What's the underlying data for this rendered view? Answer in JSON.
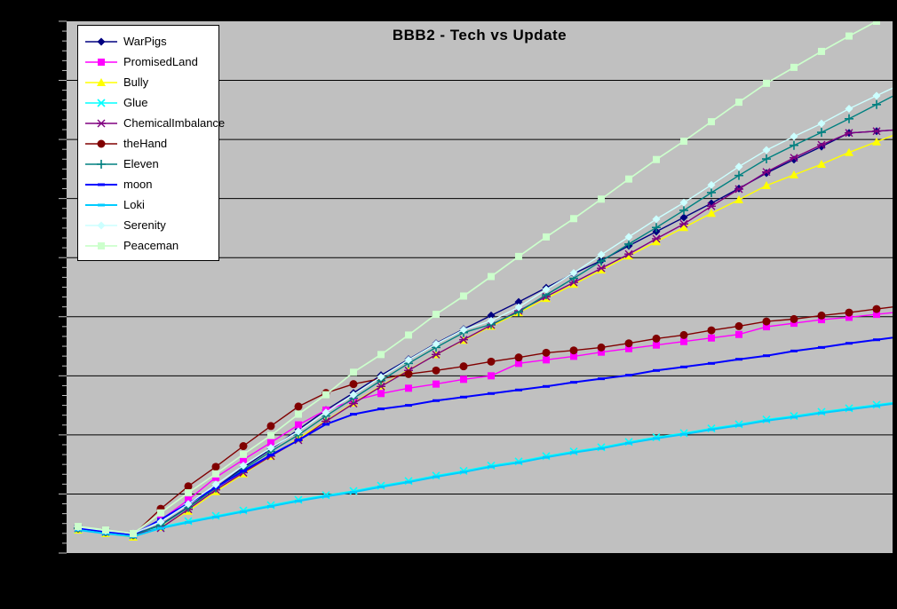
{
  "window": {
    "background": "#000000"
  },
  "title": {
    "text": "BBB2 - Tech vs Update",
    "color": "#000000"
  },
  "plot": {
    "fill": "#C0C0C0",
    "grid_color": "#000000",
    "tick_color": "#C0C0C0",
    "legend_bg": "#FFFFFF",
    "legend_border": "#000000"
  },
  "chart_data": {
    "type": "line",
    "title": "BBB2 - Tech vs Update",
    "x_axis": {
      "labels_visible": false,
      "points": 30
    },
    "y_axis": {
      "labels_visible": false,
      "gridline_intervals": 9,
      "range_grid_units": [
        0,
        9
      ]
    },
    "legend_position": "top-left-overlay",
    "grid": "horizontal-only",
    "series": [
      {
        "name": "WarPigs",
        "color": "#000080",
        "marker": "diamond",
        "width": 1.4,
        "values": [
          0.42,
          0.36,
          0.31,
          0.48,
          0.78,
          1.11,
          1.45,
          1.76,
          2.09,
          2.42,
          2.71,
          3.01,
          3.28,
          3.55,
          3.79,
          4.02,
          4.25,
          4.49,
          4.73,
          4.95,
          5.2,
          5.44,
          5.68,
          5.92,
          6.17,
          6.43,
          6.66,
          6.88,
          7.11,
          7.14
        ]
      },
      {
        "name": "PromisedLand",
        "color": "#FF00FF",
        "marker": "square",
        "width": 1.4,
        "values": [
          0.42,
          0.36,
          0.31,
          0.56,
          0.9,
          1.28,
          1.58,
          1.87,
          2.17,
          2.42,
          2.58,
          2.7,
          2.79,
          2.86,
          2.94,
          3.0,
          3.21,
          3.27,
          3.33,
          3.4,
          3.46,
          3.52,
          3.58,
          3.64,
          3.7,
          3.83,
          3.89,
          3.95,
          3.99,
          4.04
        ]
      },
      {
        "name": "Bully",
        "color": "#FFFF00",
        "marker": "triangle",
        "width": 1.4,
        "values": [
          0.39,
          0.33,
          0.27,
          0.44,
          0.71,
          1.04,
          1.34,
          1.64,
          1.94,
          2.24,
          2.54,
          2.83,
          3.1,
          3.36,
          3.6,
          3.84,
          4.07,
          4.31,
          4.55,
          4.79,
          5.03,
          5.27,
          5.51,
          5.75,
          5.98,
          6.22,
          6.4,
          6.58,
          6.78,
          6.96
        ]
      },
      {
        "name": "Glue",
        "color": "#00FFFF",
        "marker": "x",
        "width": 1.4,
        "values": [
          0.41,
          0.35,
          0.3,
          0.44,
          0.54,
          0.63,
          0.72,
          0.81,
          0.9,
          0.98,
          1.05,
          1.14,
          1.22,
          1.31,
          1.39,
          1.48,
          1.55,
          1.64,
          1.72,
          1.79,
          1.88,
          1.96,
          2.03,
          2.11,
          2.18,
          2.26,
          2.32,
          2.39,
          2.45,
          2.51
        ]
      },
      {
        "name": "ChemicalImbalance",
        "color": "#800080",
        "marker": "star",
        "width": 1.4,
        "values": [
          0.42,
          0.36,
          0.31,
          0.42,
          0.74,
          1.07,
          1.36,
          1.64,
          1.91,
          2.23,
          2.53,
          2.82,
          3.09,
          3.36,
          3.61,
          3.86,
          4.1,
          4.34,
          4.58,
          4.82,
          5.06,
          5.32,
          5.57,
          5.87,
          6.16,
          6.45,
          6.69,
          6.91,
          7.11,
          7.14
        ]
      },
      {
        "name": "theHand",
        "color": "#800000",
        "marker": "circle",
        "width": 1.4,
        "values": [
          0.42,
          0.36,
          0.31,
          0.75,
          1.13,
          1.46,
          1.81,
          2.15,
          2.48,
          2.71,
          2.86,
          2.95,
          3.03,
          3.09,
          3.16,
          3.24,
          3.31,
          3.39,
          3.43,
          3.48,
          3.55,
          3.63,
          3.69,
          3.77,
          3.84,
          3.92,
          3.96,
          4.02,
          4.07,
          4.13
        ]
      },
      {
        "name": "Eleven",
        "color": "#008080",
        "marker": "plus",
        "width": 1.4,
        "values": [
          0.42,
          0.36,
          0.31,
          0.47,
          0.77,
          1.1,
          1.42,
          1.72,
          2.0,
          2.32,
          2.62,
          2.92,
          3.21,
          3.48,
          3.73,
          3.87,
          4.08,
          4.37,
          4.65,
          4.94,
          5.23,
          5.51,
          5.8,
          6.1,
          6.39,
          6.67,
          6.9,
          7.12,
          7.35,
          7.59
        ]
      },
      {
        "name": "moon",
        "color": "#0000FF",
        "marker": "dash",
        "width": 2,
        "values": [
          0.42,
          0.36,
          0.31,
          0.57,
          0.84,
          1.11,
          1.39,
          1.66,
          1.91,
          2.18,
          2.35,
          2.44,
          2.5,
          2.58,
          2.64,
          2.7,
          2.76,
          2.82,
          2.89,
          2.95,
          3.01,
          3.09,
          3.15,
          3.21,
          3.28,
          3.34,
          3.42,
          3.48,
          3.55,
          3.61
        ]
      },
      {
        "name": "Loki",
        "color": "#00CCFF",
        "marker": "dash",
        "width": 2,
        "values": [
          0.39,
          0.33,
          0.28,
          0.42,
          0.52,
          0.61,
          0.7,
          0.79,
          0.88,
          0.96,
          1.03,
          1.12,
          1.2,
          1.29,
          1.37,
          1.46,
          1.53,
          1.62,
          1.7,
          1.77,
          1.86,
          1.94,
          2.01,
          2.09,
          2.16,
          2.24,
          2.3,
          2.37,
          2.43,
          2.49
        ]
      },
      {
        "name": "Serenity",
        "color": "#CCFFFF",
        "marker": "diamond",
        "width": 1.4,
        "values": [
          0.44,
          0.38,
          0.33,
          0.53,
          0.83,
          1.16,
          1.48,
          1.78,
          2.06,
          2.38,
          2.68,
          2.98,
          3.27,
          3.54,
          3.78,
          3.93,
          4.16,
          4.46,
          4.74,
          5.05,
          5.35,
          5.65,
          5.93,
          6.23,
          6.54,
          6.82,
          7.05,
          7.27,
          7.52,
          7.74
        ]
      },
      {
        "name": "Peaceman",
        "color": "#CCFFCC",
        "marker": "square",
        "width": 1.7,
        "values": [
          0.45,
          0.39,
          0.33,
          0.68,
          1.02,
          1.34,
          1.67,
          1.99,
          2.35,
          2.68,
          3.06,
          3.36,
          3.69,
          4.04,
          4.35,
          4.68,
          5.02,
          5.35,
          5.66,
          5.99,
          6.33,
          6.66,
          6.97,
          7.3,
          7.63,
          7.95,
          8.22,
          8.49,
          8.75,
          9.0
        ]
      }
    ]
  }
}
